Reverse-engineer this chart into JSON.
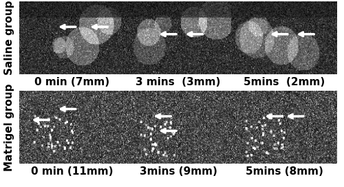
{
  "row_labels": [
    "Saline group",
    "Matrigel group"
  ],
  "col_labels_row1": [
    "0 min (7mm)",
    "3 mins  (3mm)",
    "5mins  (2mm)"
  ],
  "col_labels_row2": [
    "0 min (11mm)",
    "3mins (9mm)",
    "5mins (8mm)"
  ],
  "background_color": "#ffffff",
  "label_fontsize": 11,
  "row_label_fontsize": 11,
  "border_color": "#000000",
  "image_bg": "#606060",
  "image_bg_dark": "#202020"
}
